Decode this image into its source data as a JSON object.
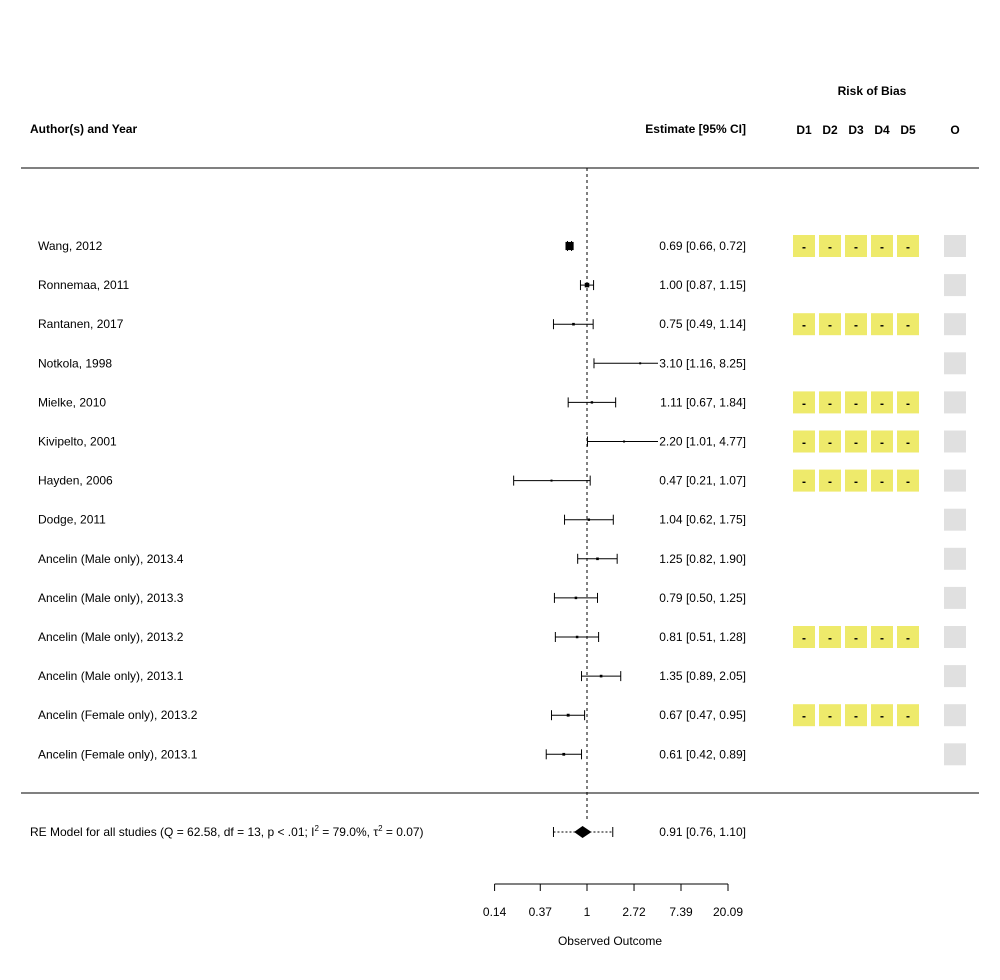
{
  "chart_data": {
    "type": "forest",
    "headers": {
      "study": "Author(s) and Year",
      "estimate": "Estimate [95% CI]",
      "rob_title": "Risk of Bias",
      "rob_domains": [
        "D1",
        "D2",
        "D3",
        "D4",
        "D5"
      ],
      "overall": "O"
    },
    "studies": [
      {
        "label": "Wang, 2012",
        "est": 0.69,
        "lo": 0.66,
        "hi": 0.72,
        "text": "0.69 [0.66, 0.72]",
        "rob": [
          "-",
          "-",
          "-",
          "-",
          "-"
        ]
      },
      {
        "label": "Ronnemaa, 2011",
        "est": 1.0,
        "lo": 0.87,
        "hi": 1.15,
        "text": "1.00 [0.87, 1.15]",
        "rob": []
      },
      {
        "label": "Rantanen, 2017",
        "est": 0.75,
        "lo": 0.49,
        "hi": 1.14,
        "text": "0.75 [0.49, 1.14]",
        "rob": [
          "-",
          "-",
          "-",
          "-",
          "-"
        ]
      },
      {
        "label": "Notkola, 1998",
        "est": 3.1,
        "lo": 1.16,
        "hi": 8.25,
        "text": "3.10 [1.16, 8.25]",
        "rob": []
      },
      {
        "label": "Mielke, 2010",
        "est": 1.11,
        "lo": 0.67,
        "hi": 1.84,
        "text": "1.11 [0.67, 1.84]",
        "rob": [
          "-",
          "-",
          "-",
          "-",
          "-"
        ]
      },
      {
        "label": "Kivipelto, 2001",
        "est": 2.2,
        "lo": 1.01,
        "hi": 4.77,
        "text": "2.20 [1.01, 4.77]",
        "rob": [
          "-",
          "-",
          "-",
          "-",
          "-"
        ]
      },
      {
        "label": "Hayden, 2006",
        "est": 0.47,
        "lo": 0.21,
        "hi": 1.07,
        "text": "0.47 [0.21, 1.07]",
        "rob": [
          "-",
          "-",
          "-",
          "-",
          "-"
        ]
      },
      {
        "label": "Dodge, 2011",
        "est": 1.04,
        "lo": 0.62,
        "hi": 1.75,
        "text": "1.04 [0.62, 1.75]",
        "rob": []
      },
      {
        "label": "Ancelin (Male only), 2013.4",
        "est": 1.25,
        "lo": 0.82,
        "hi": 1.9,
        "text": "1.25 [0.82, 1.90]",
        "rob": []
      },
      {
        "label": "Ancelin (Male only), 2013.3",
        "est": 0.79,
        "lo": 0.5,
        "hi": 1.25,
        "text": "0.79 [0.50, 1.25]",
        "rob": []
      },
      {
        "label": "Ancelin (Male only), 2013.2",
        "est": 0.81,
        "lo": 0.51,
        "hi": 1.28,
        "text": "0.81 [0.51, 1.28]",
        "rob": [
          "-",
          "-",
          "-",
          "-",
          "-"
        ]
      },
      {
        "label": "Ancelin (Male only), 2013.1",
        "est": 1.35,
        "lo": 0.89,
        "hi": 2.05,
        "text": "1.35 [0.89, 2.05]",
        "rob": []
      },
      {
        "label": "Ancelin (Female only), 2013.2",
        "est": 0.67,
        "lo": 0.47,
        "hi": 0.95,
        "text": "0.67 [0.47, 0.95]",
        "rob": [
          "-",
          "-",
          "-",
          "-",
          "-"
        ]
      },
      {
        "label": "Ancelin (Female only), 2013.1",
        "est": 0.61,
        "lo": 0.42,
        "hi": 0.89,
        "text": "0.61 [0.42, 0.89]",
        "rob": []
      }
    ],
    "summary": {
      "label_prefix": "RE Model for all studies (Q = 62.58, df = 13, p < .01; I",
      "label_mid": " = 79.0%, τ",
      "label_end": " = 0.07)",
      "superscript": "2",
      "est": 0.91,
      "lo": 0.76,
      "hi": 1.1,
      "pred_lo": 0.49,
      "pred_hi": 1.73,
      "text": "0.91 [0.76, 1.10]"
    },
    "x_axis": {
      "label": "Observed Outcome",
      "scale": "log",
      "ticks": [
        0.14,
        0.37,
        1,
        2.72,
        7.39,
        20.09
      ],
      "tick_labels": [
        "0.14",
        "0.37",
        "1",
        "2.72",
        "7.39",
        "20.09"
      ],
      "reference_line": 1
    },
    "colors": {
      "rob_fill": "#eeea6b",
      "overall_fill": "#e0e0e0"
    }
  }
}
